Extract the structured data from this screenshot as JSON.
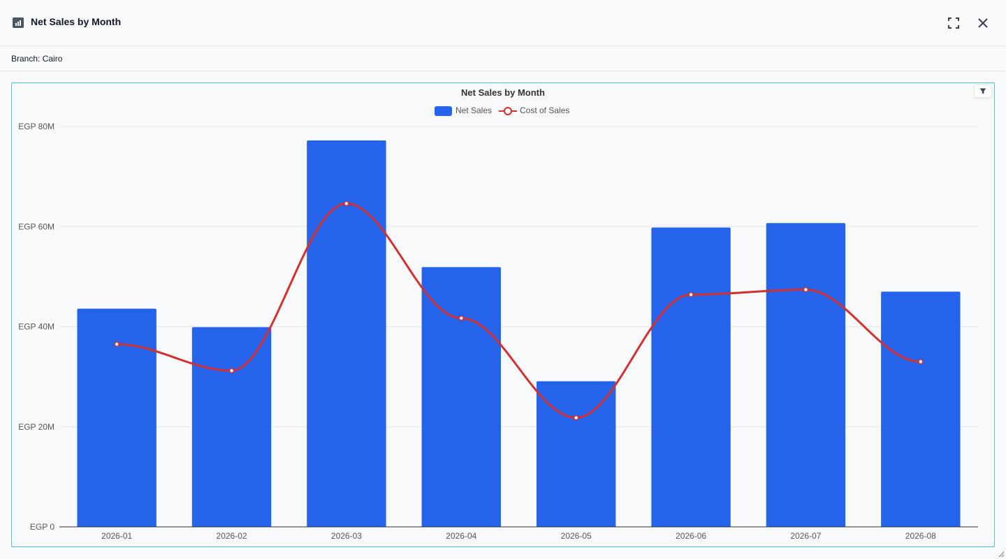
{
  "window": {
    "title": "Net Sales by Month",
    "filter_label": "Branch: Cairo"
  },
  "icons": {
    "header": "bar-chart-icon",
    "fullscreen": "fullscreen-icon",
    "close": "close-icon",
    "filter": "filter-icon",
    "resize": "resize-grip-icon"
  },
  "colors": {
    "bar": "#2563eb",
    "line": "#d32f2f",
    "grid": "#e3e5e8",
    "axis": "#6b7280",
    "panel_border": "#4dc3d6"
  },
  "chart_data": {
    "type": "bar",
    "title": "Net Sales by Month",
    "xlabel": "",
    "ylabel": "",
    "categories": [
      "2026-01",
      "2026-02",
      "2026-03",
      "2026-04",
      "2026-05",
      "2026-06",
      "2026-07",
      "2026-08"
    ],
    "series": [
      {
        "name": "Net Sales",
        "type": "bar",
        "values": [
          43.6,
          39.9,
          77.2,
          51.9,
          29.1,
          59.8,
          60.7,
          47.0
        ]
      },
      {
        "name": "Cost of Sales",
        "type": "line",
        "smooth": true,
        "values": [
          36.5,
          31.2,
          64.6,
          41.7,
          21.8,
          46.4,
          47.4,
          33.0
        ]
      }
    ],
    "ylim": [
      0,
      80
    ],
    "yticks": [
      0,
      20,
      40,
      60,
      80
    ],
    "ytick_labels": [
      "EGP 0",
      "EGP 20M",
      "EGP 40M",
      "EGP 60M",
      "EGP 80M"
    ],
    "legend": "top-center",
    "grid": true
  }
}
